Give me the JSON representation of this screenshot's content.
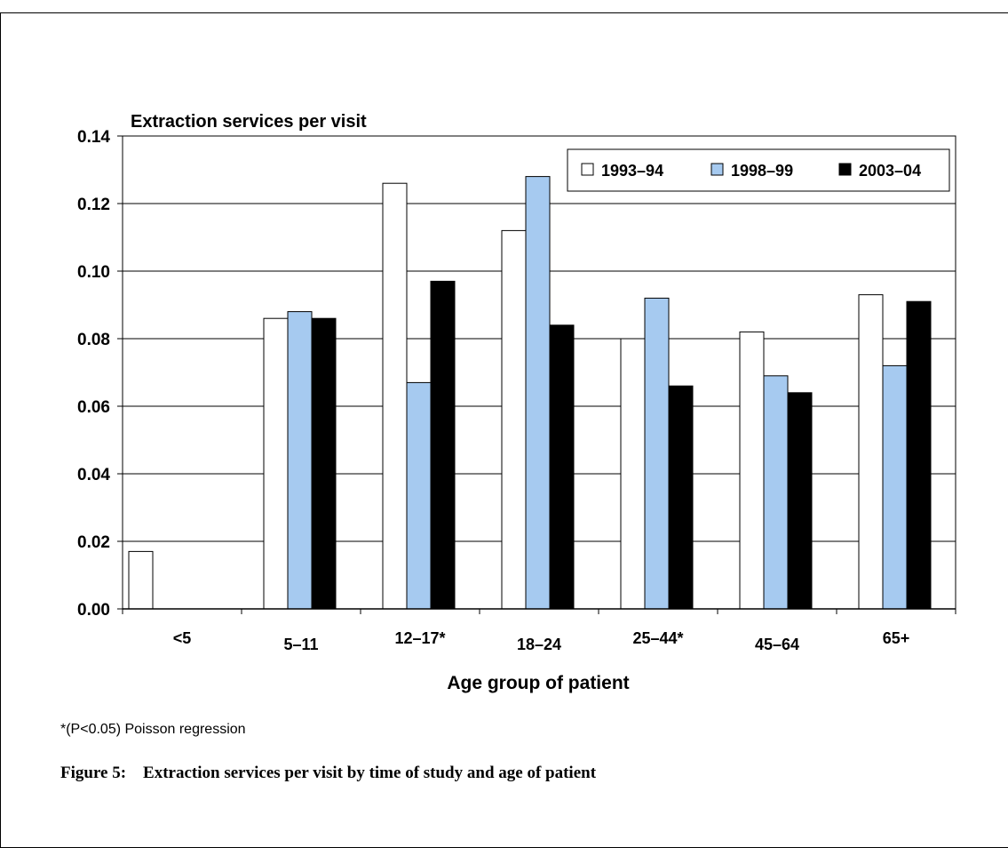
{
  "chart_data": {
    "type": "bar",
    "ylabel": "Extraction services per visit",
    "xlabel": "Age group of patient",
    "categories": [
      "<5",
      "5–11",
      "12–17*",
      "18–24",
      "25–44*",
      "45–64",
      "65+"
    ],
    "series": [
      {
        "name": "1993–94",
        "values": [
          0.017,
          0.086,
          0.126,
          0.112,
          0.08,
          0.082,
          0.093
        ],
        "color": "#ffffff"
      },
      {
        "name": "1998–99",
        "values": [
          0,
          0.088,
          0.067,
          0.128,
          0.092,
          0.069,
          0.072
        ],
        "color": "#a6caf0"
      },
      {
        "name": "2003–04",
        "values": [
          0,
          0.086,
          0.097,
          0.084,
          0.066,
          0.064,
          0.091
        ],
        "color": "#000000"
      }
    ],
    "ylim": [
      0,
      0.14
    ],
    "yticks": [
      "0.00",
      "0.02",
      "0.04",
      "0.06",
      "0.08",
      "0.10",
      "0.12",
      "0.14"
    ],
    "grid": true,
    "legend_position": "top-right"
  },
  "footnote": "*(P<0.05) Poisson regression",
  "caption": "Figure 5:    Extraction services per visit by time of study and age of patient"
}
